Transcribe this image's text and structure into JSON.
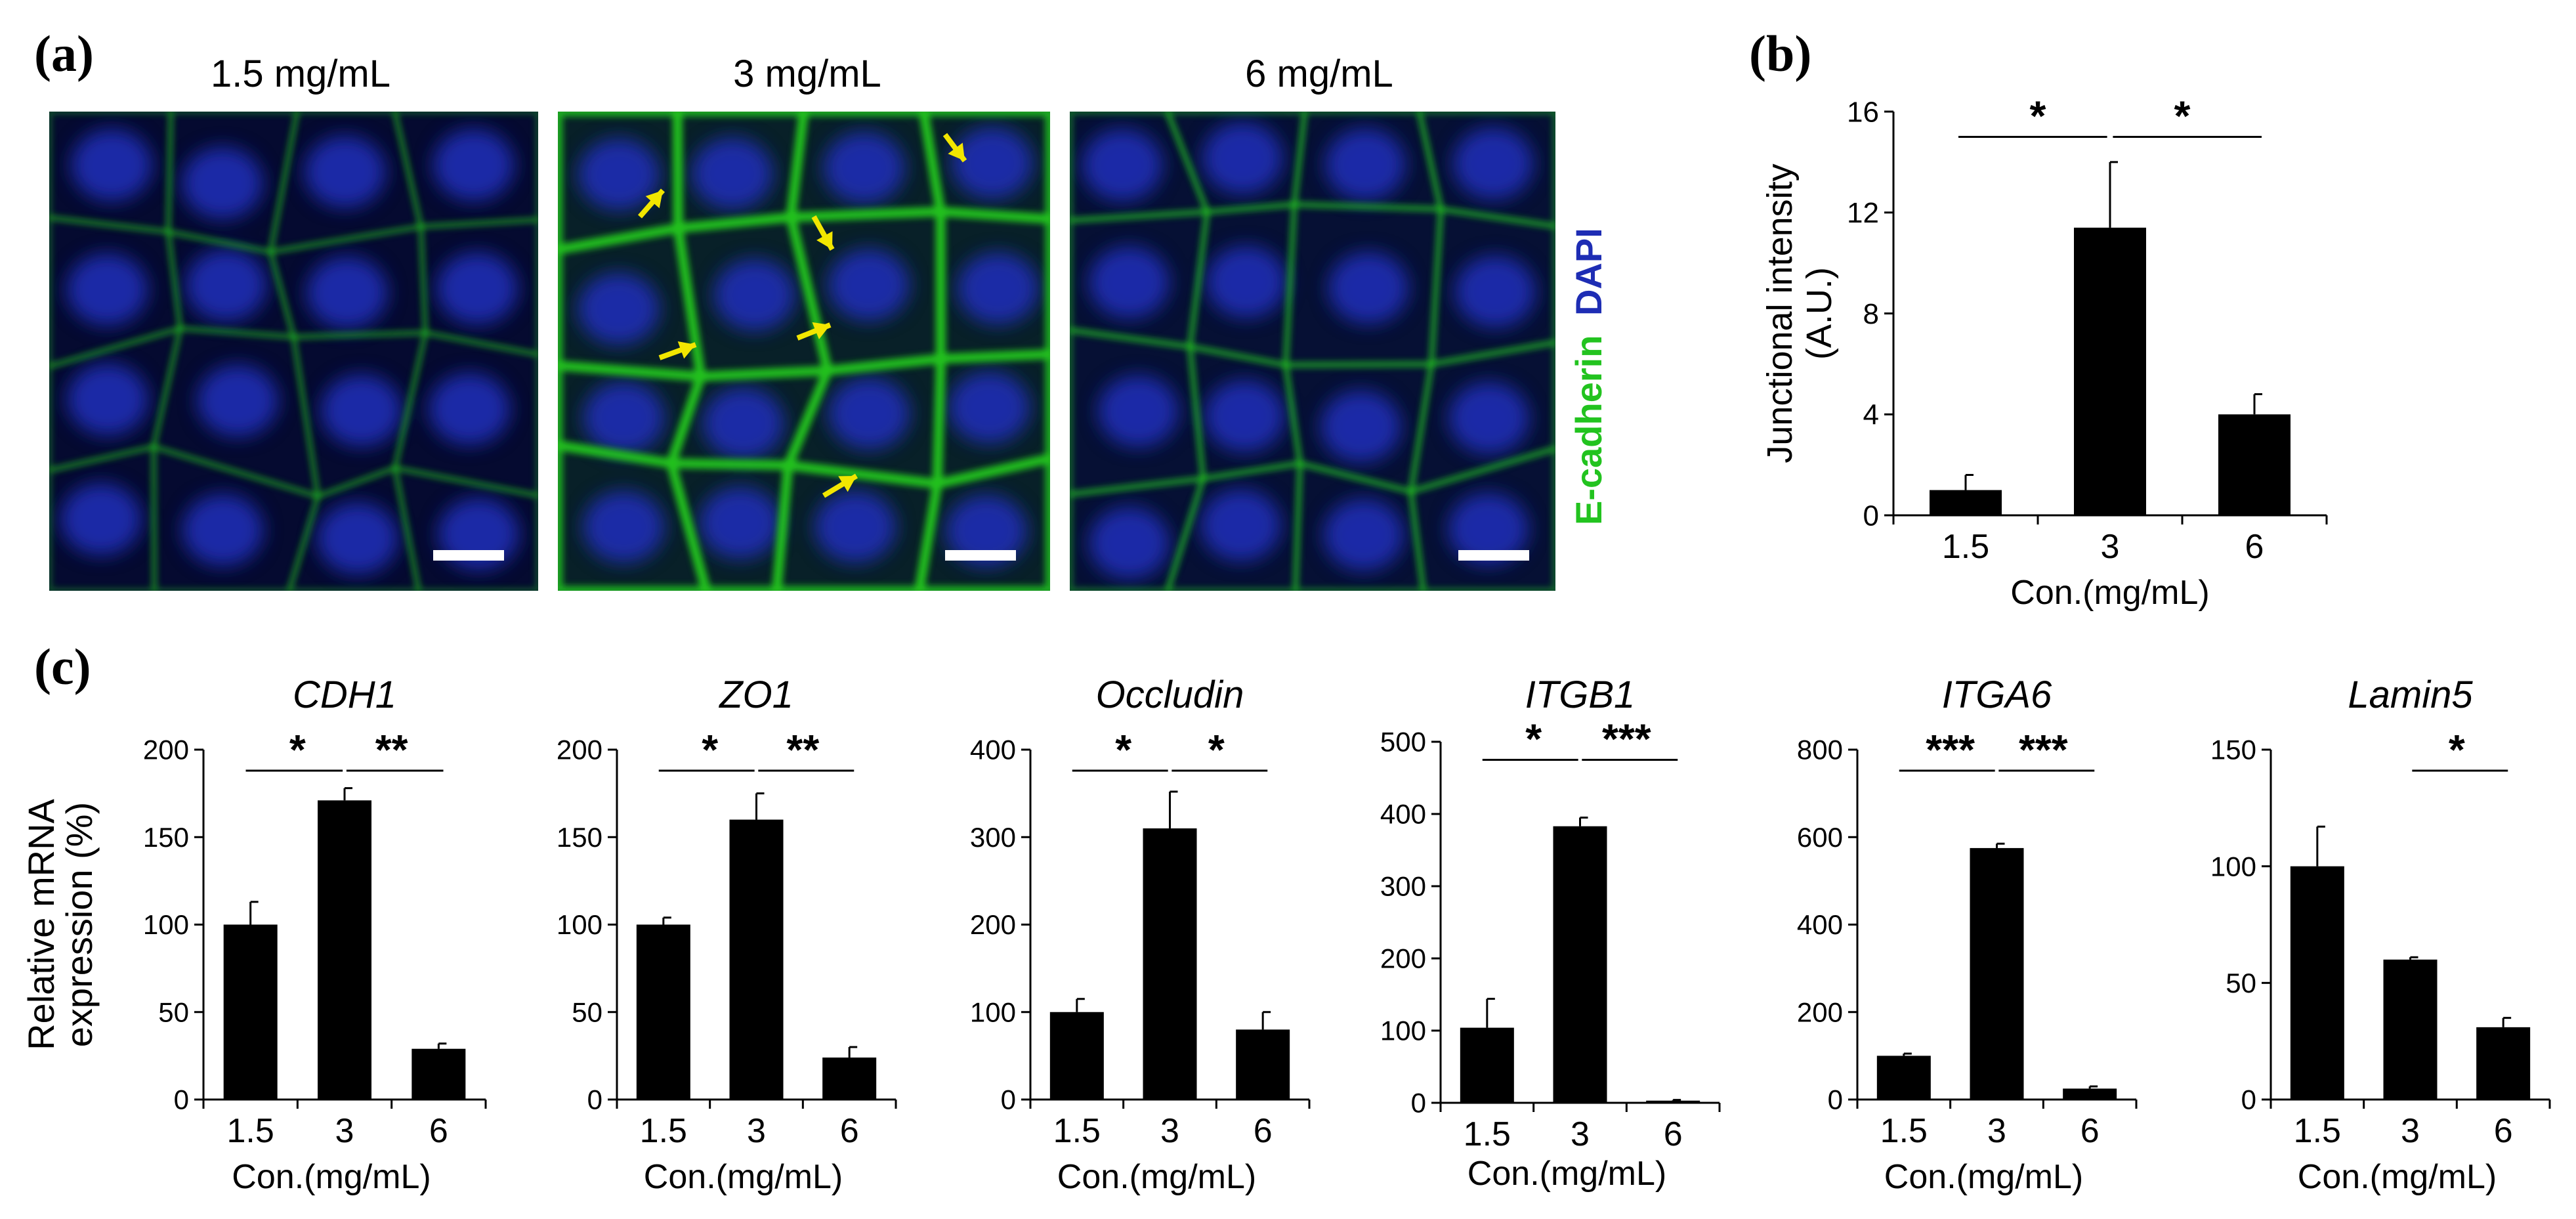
{
  "panels": {
    "a_label": "(a)",
    "b_label": "(b)",
    "c_label": "(c)"
  },
  "micrographs": {
    "titles": [
      "1.5 mg/mL",
      "3 mg/mL",
      "6 mg/mL"
    ],
    "stain_label_green": "E-cadherin",
    "stain_label_blue": "DAPI",
    "colors": {
      "membrane": "#22c31f",
      "nucleus": "#1e2db4",
      "arrow": "#f2e600",
      "scale_bar": "#ffffff"
    }
  },
  "chart_data": [
    {
      "type": "bar",
      "panel": "b",
      "categories": [
        "1.5",
        "3",
        "6"
      ],
      "values": [
        1.0,
        11.4,
        4.0
      ],
      "errors": [
        0.6,
        2.6,
        0.8
      ],
      "title": "",
      "xlabel": "Con.(mg/mL)",
      "ylabel_lines": [
        "Junctional intensity",
        "(A.U.)"
      ],
      "ylim": [
        0,
        16
      ],
      "yticks": [
        0,
        4,
        8,
        12,
        16
      ],
      "significance": [
        {
          "from": 0,
          "to": 1,
          "label": "*",
          "level": 15.0
        },
        {
          "from": 1,
          "to": 2,
          "label": "*",
          "level": 15.0
        }
      ],
      "bar_color": "#000000"
    },
    {
      "type": "bar",
      "panel": "c",
      "categories": [
        "1.5",
        "3",
        "6"
      ],
      "values": [
        100,
        171,
        29
      ],
      "errors": [
        13,
        7,
        3
      ],
      "title": "CDH1",
      "xlabel": "Con.(mg/mL)",
      "ylabel_lines": [
        "Relative mRNA",
        "expression (%)"
      ],
      "ylim": [
        0,
        200
      ],
      "yticks": [
        0,
        50,
        100,
        150,
        200
      ],
      "significance": [
        {
          "from": 0,
          "to": 1,
          "label": "*",
          "level": 188
        },
        {
          "from": 1,
          "to": 2,
          "label": "**",
          "level": 188
        }
      ],
      "bar_color": "#000000"
    },
    {
      "type": "bar",
      "panel": "c",
      "categories": [
        "1.5",
        "3",
        "6"
      ],
      "values": [
        100,
        160,
        24
      ],
      "errors": [
        4,
        15,
        6
      ],
      "title": "ZO1",
      "xlabel": "Con.(mg/mL)",
      "ylim": [
        0,
        200
      ],
      "yticks": [
        0,
        50,
        100,
        150,
        200
      ],
      "significance": [
        {
          "from": 0,
          "to": 1,
          "label": "*",
          "level": 188
        },
        {
          "from": 1,
          "to": 2,
          "label": "**",
          "level": 188
        }
      ],
      "bar_color": "#000000"
    },
    {
      "type": "bar",
      "panel": "c",
      "categories": [
        "1.5",
        "3",
        "6"
      ],
      "values": [
        100,
        310,
        80
      ],
      "errors": [
        15,
        42,
        20
      ],
      "title": "Occludin",
      "xlabel": "Con.(mg/mL)",
      "ylim": [
        0,
        400
      ],
      "yticks": [
        0,
        100,
        200,
        300,
        400
      ],
      "significance": [
        {
          "from": 0,
          "to": 1,
          "label": "*",
          "level": 376
        },
        {
          "from": 1,
          "to": 2,
          "label": "*",
          "level": 376
        }
      ],
      "bar_color": "#000000"
    },
    {
      "type": "bar",
      "panel": "c",
      "categories": [
        "1.5",
        "3",
        "6"
      ],
      "values": [
        104,
        383,
        3
      ],
      "errors": [
        40,
        12,
        1
      ],
      "title": "ITGB1",
      "xlabel": "Con.(mg/mL)",
      "ylim": [
        0,
        500
      ],
      "yticks": [
        0,
        100,
        200,
        300,
        400,
        500
      ],
      "significance": [
        {
          "from": 0,
          "to": 1,
          "label": "*",
          "level": 475
        },
        {
          "from": 1,
          "to": 2,
          "label": "***",
          "level": 475
        }
      ],
      "bar_color": "#000000"
    },
    {
      "type": "bar",
      "panel": "c",
      "categories": [
        "1.5",
        "3",
        "6"
      ],
      "values": [
        100,
        575,
        25
      ],
      "errors": [
        5,
        10,
        5
      ],
      "title": "ITGA6",
      "xlabel": "Con.(mg/mL)",
      "ylim": [
        0,
        800
      ],
      "yticks": [
        0,
        200,
        400,
        600,
        800
      ],
      "significance": [
        {
          "from": 0,
          "to": 1,
          "label": "***",
          "level": 752
        },
        {
          "from": 1,
          "to": 2,
          "label": "***",
          "level": 752
        }
      ],
      "bar_color": "#000000"
    },
    {
      "type": "bar",
      "panel": "c",
      "categories": [
        "1.5",
        "3",
        "6"
      ],
      "values": [
        100,
        60,
        31
      ],
      "errors": [
        17,
        1,
        4
      ],
      "title": "Lamin5",
      "xlabel": "Con.(mg/mL)",
      "ylim": [
        0,
        150
      ],
      "yticks": [
        0,
        50,
        100,
        150
      ],
      "significance": [
        {
          "from": 1,
          "to": 2,
          "label": "*",
          "level": 141
        }
      ],
      "bar_color": "#000000"
    }
  ]
}
